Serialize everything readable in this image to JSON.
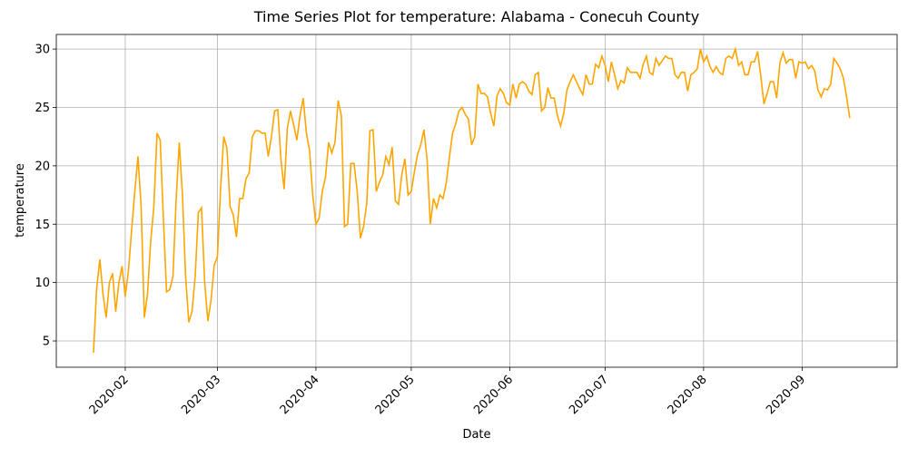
{
  "chart_data": {
    "type": "line",
    "title": "Time Series Plot for temperature: Alabama - Conecuh County",
    "x_label": "Date",
    "y_label": "temperature",
    "x": [
      22,
      23,
      24,
      25,
      26,
      27,
      28,
      29,
      30,
      31,
      32,
      33,
      34,
      35,
      36,
      37,
      38,
      39,
      40,
      41,
      42,
      43,
      44,
      45,
      46,
      47,
      48,
      49,
      50,
      51,
      52,
      53,
      54,
      55,
      56,
      57,
      58,
      59,
      60,
      61,
      62,
      63,
      64,
      65,
      66,
      67,
      68,
      69,
      70,
      71,
      72,
      73,
      74,
      75,
      76,
      77,
      78,
      79,
      80,
      81,
      82,
      83,
      84,
      85,
      86,
      87,
      88,
      89,
      90,
      91,
      92,
      93,
      94,
      95,
      96,
      97,
      98,
      99,
      100,
      101,
      102,
      103,
      104,
      105,
      106,
      107,
      108,
      109,
      110,
      111,
      112,
      113,
      114,
      115,
      116,
      117,
      118,
      119,
      120,
      121,
      122,
      123,
      124,
      125,
      126,
      127,
      128,
      129,
      130,
      131,
      132,
      133,
      134,
      135,
      136,
      137,
      138,
      139,
      140,
      141,
      142,
      143,
      144,
      145,
      146,
      147,
      148,
      149,
      150,
      151,
      152,
      153,
      154,
      155,
      156,
      157,
      158,
      159,
      160,
      161,
      162,
      163,
      164,
      165,
      166,
      167,
      168,
      169,
      170,
      171,
      172,
      173,
      174,
      175,
      176,
      177,
      178,
      179,
      180,
      181,
      182,
      183,
      184,
      185,
      186,
      187,
      188,
      189,
      190,
      191,
      192,
      193,
      194,
      195,
      196,
      197,
      198,
      199,
      200,
      201,
      202,
      203,
      204,
      205,
      206,
      207,
      208,
      209,
      210,
      211,
      212,
      213,
      214,
      215,
      216,
      217,
      218,
      219,
      220,
      221,
      222,
      223,
      224,
      225,
      226,
      227,
      228,
      229,
      230,
      231,
      232,
      233,
      234,
      235,
      236,
      237,
      238,
      239,
      240,
      241,
      242,
      243,
      244,
      245,
      246,
      247,
      248,
      249,
      250,
      251,
      252,
      253,
      254,
      255,
      256,
      257,
      258,
      259,
      260
    ],
    "series": [
      {
        "name": "temperature",
        "color": "#ffa500",
        "values": [
          4.0,
          9.5,
          12.0,
          9.0,
          7.0,
          10,
          10.8,
          7.5,
          10,
          11.4,
          8.8,
          11,
          14.5,
          17.8,
          20.8,
          16.5,
          7.0,
          9,
          13.5,
          16.5,
          22.8,
          22.2,
          15.5,
          9.2,
          9.4,
          10.5,
          17,
          22,
          17.5,
          10.5,
          6.6,
          7.5,
          10.5,
          16,
          16.4,
          10,
          6.7,
          8.5,
          11.5,
          12.2,
          18,
          22.5,
          21.5,
          16.5,
          15.8,
          13.9,
          17.2,
          17.2,
          18.9,
          19.4,
          22.5,
          23,
          23,
          22.8,
          22.8,
          20.8,
          22.5,
          24.7,
          24.8,
          20.5,
          18,
          23.2,
          24.7,
          23.5,
          22.2,
          24.3,
          25.8,
          22.8,
          21.3,
          17.5,
          15,
          15.5,
          17.8,
          19,
          22,
          21.1,
          22,
          25.6,
          24.3,
          14.8,
          15,
          20.2,
          20.2,
          17.8,
          13.8,
          14.8,
          16.8,
          23,
          23.1,
          17.8,
          18.6,
          19.2,
          20.8,
          20.1,
          21.6,
          17,
          16.7,
          19.2,
          20.6,
          17.5,
          17.8,
          19.5,
          21,
          21.8,
          23.1,
          20.5,
          15,
          17.2,
          16.4,
          17.5,
          17.2,
          18.5,
          20.7,
          22.8,
          23.6,
          24.7,
          25,
          24.4,
          24,
          21.8,
          22.5,
          27,
          26.2,
          26.2,
          25.9,
          24.5,
          23.4,
          26,
          26.6,
          26.2,
          25.4,
          25.2,
          27,
          25.8,
          27,
          27.2,
          27,
          26.4,
          26.1,
          27.8,
          28,
          24.7,
          25,
          26.7,
          25.8,
          25.8,
          24.3,
          23.4,
          24.5,
          26.5,
          27.2,
          27.8,
          27.2,
          26.6,
          26.1,
          27.8,
          27,
          27,
          28.7,
          28.4,
          29.4,
          28.6,
          27.2,
          28.9,
          27.8,
          26.6,
          27.3,
          27.1,
          28.4,
          28,
          28,
          28,
          27.5,
          28.7,
          29.4,
          28,
          27.8,
          29.2,
          28.6,
          29,
          29.4,
          29.2,
          29.2,
          27.8,
          27.5,
          28,
          28,
          26.4,
          27.8,
          28,
          28.3,
          30,
          28.9,
          29.4,
          28.5,
          28,
          28.5,
          28,
          27.8,
          29.2,
          29.4,
          29.2,
          30,
          28.6,
          28.9,
          27.8,
          27.8,
          28.9,
          28.9,
          29.8,
          27.7,
          25.3,
          26.2,
          27.2,
          27.2,
          25.8,
          28.8,
          29.7,
          28.8,
          29.1,
          29.1,
          27.5,
          28.9,
          28.8,
          28.9,
          28.3,
          28.6,
          28.1,
          26.5,
          25.9,
          26.6,
          26.5,
          27,
          29.2,
          28.8,
          28.3,
          27.5,
          25.9,
          24.1
        ]
      }
    ],
    "xlim": [
      10.3,
      274.9
    ],
    "xticks": [
      {
        "value": 32,
        "label": "2020-02"
      },
      {
        "value": 61,
        "label": "2020-03"
      },
      {
        "value": 92,
        "label": "2020-04"
      },
      {
        "value": 122,
        "label": "2020-05"
      },
      {
        "value": 153,
        "label": "2020-06"
      },
      {
        "value": 183,
        "label": "2020-07"
      },
      {
        "value": 214,
        "label": "2020-08"
      },
      {
        "value": 245,
        "label": "2020-09"
      }
    ],
    "ylim": [
      2.75,
      31.25
    ],
    "yticks": [
      5,
      10,
      15,
      20,
      25,
      30
    ],
    "grid": true
  }
}
